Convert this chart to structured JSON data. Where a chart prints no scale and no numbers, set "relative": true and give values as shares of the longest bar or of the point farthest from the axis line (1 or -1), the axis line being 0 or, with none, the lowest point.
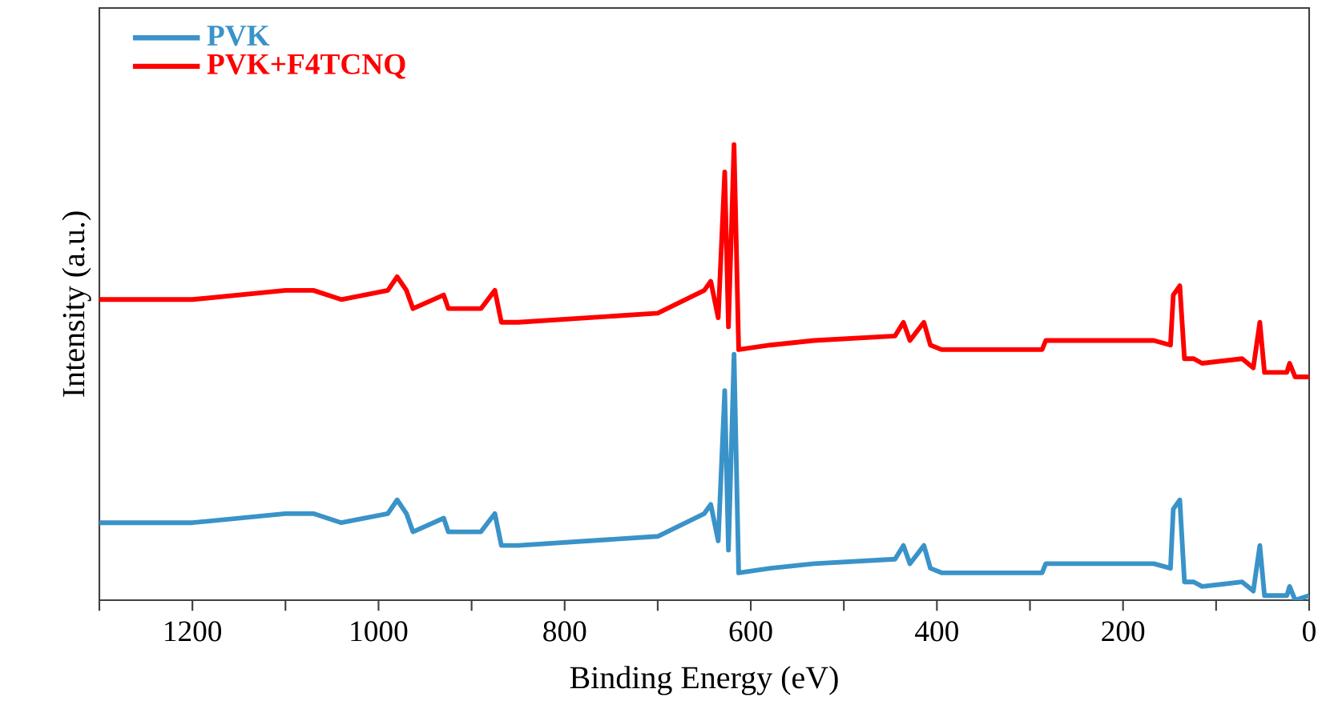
{
  "chart_data": {
    "type": "line",
    "xlabel": "Binding Energy (eV)",
    "ylabel": "Intensity (a.u.)",
    "relative": true,
    "legend": "top left",
    "marker": "none",
    "line_style": "solid",
    "xlim": [
      1300,
      0
    ],
    "xticks": [
      {
        "value": 1300,
        "label": null
      },
      1200,
      {
        "value": 1100,
        "label": null
      },
      1000,
      {
        "value": 900,
        "label": null
      },
      800,
      {
        "value": 700,
        "label": null
      },
      600,
      {
        "value": 500,
        "label": null
      },
      400,
      {
        "value": 300,
        "label": null
      },
      200,
      {
        "value": 100,
        "label": null
      },
      0
    ],
    "x": [
      1300,
      1200,
      1100,
      1070,
      1040,
      990,
      980,
      970,
      963,
      930,
      925,
      890,
      875,
      868,
      850,
      700,
      650,
      643,
      635,
      628,
      624,
      618,
      613,
      579,
      532,
      445,
      436,
      429,
      414,
      407,
      395,
      287,
      283,
      191,
      167,
      149,
      146,
      139,
      134,
      124,
      115,
      72,
      60,
      53,
      48,
      24,
      21,
      15,
      0
    ],
    "series": [
      {
        "name": "PVK",
        "color": "#3a93c8",
        "values": [
          0.17,
          0.17,
          0.19,
          0.19,
          0.17,
          0.19,
          0.22,
          0.19,
          0.15,
          0.18,
          0.15,
          0.15,
          0.19,
          0.12,
          0.12,
          0.14,
          0.19,
          0.21,
          0.13,
          0.46,
          0.11,
          0.54,
          0.06,
          0.07,
          0.08,
          0.09,
          0.12,
          0.08,
          0.12,
          0.07,
          0.06,
          0.06,
          0.08,
          0.08,
          0.08,
          0.07,
          0.2,
          0.22,
          0.04,
          0.04,
          0.03,
          0.04,
          0.02,
          0.12,
          0.01,
          0.01,
          0.03,
          0,
          0.01
        ]
      },
      {
        "name": "PVK+F4TCNQ",
        "color": "#ff0000",
        "values": [
          0.66,
          0.66,
          0.68,
          0.68,
          0.66,
          0.68,
          0.71,
          0.68,
          0.64,
          0.67,
          0.64,
          0.64,
          0.68,
          0.61,
          0.61,
          0.63,
          0.68,
          0.7,
          0.62,
          0.94,
          0.6,
          1.0,
          0.55,
          0.56,
          0.57,
          0.58,
          0.61,
          0.57,
          0.61,
          0.56,
          0.55,
          0.55,
          0.57,
          0.57,
          0.57,
          0.56,
          0.67,
          0.69,
          0.53,
          0.53,
          0.52,
          0.53,
          0.51,
          0.61,
          0.5,
          0.5,
          0.52,
          0.49,
          0.49
        ]
      }
    ]
  }
}
